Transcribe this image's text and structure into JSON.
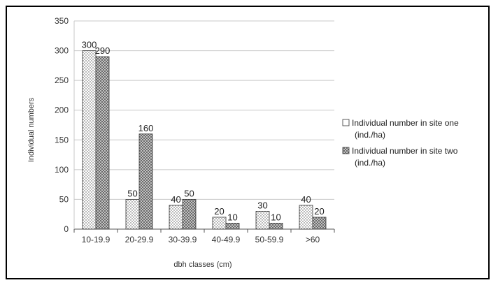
{
  "chart_data": {
    "type": "bar",
    "categories": [
      "10-19.9",
      "20-29.9",
      "30-39.9",
      "40-49.9",
      "50-59.9",
      ">60"
    ],
    "series": [
      {
        "name": "Individual number in site one (ind./ha)",
        "legend_lines": [
          "Individual number in site one",
          "(ind./ha)"
        ],
        "values": [
          300,
          50,
          40,
          20,
          30,
          40
        ],
        "pattern": "dots"
      },
      {
        "name": "Individual number in site two (ind./ha)",
        "legend_lines": [
          "Individual number in site two",
          "(ind./ha)"
        ],
        "values": [
          290,
          160,
          50,
          10,
          10,
          20
        ],
        "pattern": "crosshatch"
      }
    ],
    "xlabel": "dbh classes (cm)",
    "ylabel": "Individual numbers",
    "ylim": [
      0,
      350
    ],
    "yticks": [
      0,
      50,
      100,
      150,
      200,
      250,
      300,
      350
    ],
    "grid": true,
    "legend_position": "right"
  }
}
